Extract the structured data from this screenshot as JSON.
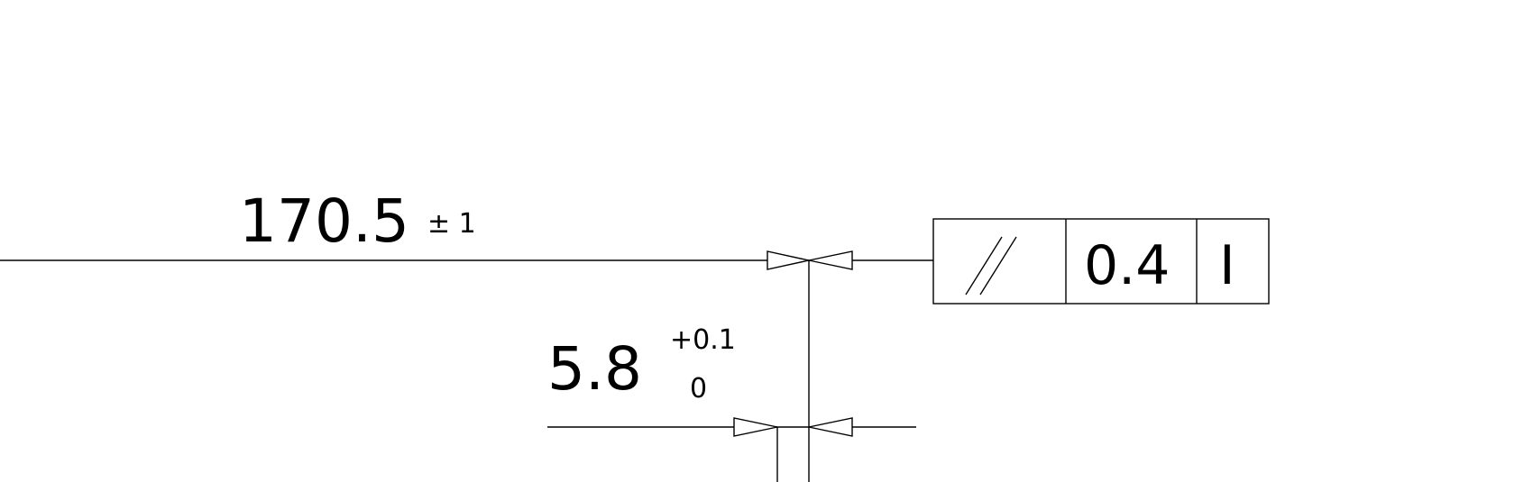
{
  "drawing": {
    "dimension_length": {
      "value": "170.5",
      "tolerance": "± 1"
    },
    "dimension_thickness": {
      "value": "5.8",
      "upper_tolerance": "+0.1",
      "lower_tolerance": "0"
    },
    "feature_control_frame": {
      "symbol": "parallelism",
      "tolerance": "0.4",
      "datum": "I"
    },
    "colors": {
      "line": "#000000",
      "background": "#ffffff"
    }
  }
}
